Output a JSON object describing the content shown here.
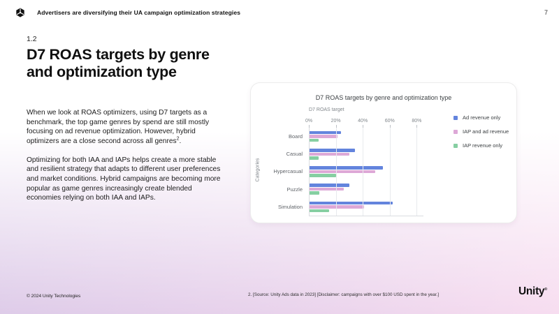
{
  "header": {
    "title": "Advertisers are diversifying their UA campaign optimization strategies",
    "page_number": "7"
  },
  "section": {
    "number": "1.2"
  },
  "main": {
    "title": "D7 ROAS targets by genre and optimization type",
    "paragraph1": "When we look at ROAS optimizers, using D7 targets as a benchmark, the top game genres by spend are still mostly focusing on ad revenue optimization. However, hybrid optimizers are a close second across all genres",
    "paragraph1_footnote_ref": "2",
    "paragraph1_end": ".",
    "paragraph2": "Optimizing for both IAA and IAPs helps create a more stable and resilient strategy that adapts to different user preferences and market conditions. Hybrid campaigns are becoming more popular as game genres increasingly create blended economies relying on both IAA and IAPs."
  },
  "chart_data": {
    "type": "bar",
    "orientation": "horizontal",
    "title": "D7 ROAS targets by genre and optimization type",
    "axis_title": "D7 ROAS target",
    "ylabel": "Categories",
    "categories": [
      "Board",
      "Casual",
      "Hypercasual",
      "Puzzle",
      "Simulation"
    ],
    "series": [
      {
        "name": "Ad revenue only",
        "color": "#6384dd",
        "values": [
          24,
          34,
          55,
          30,
          62
        ]
      },
      {
        "name": "IAP and ad revenue",
        "color": "#dda8d7",
        "values": [
          21,
          30,
          49,
          26,
          41
        ]
      },
      {
        "name": "IAP revenue only",
        "color": "#86cfa2",
        "values": [
          7,
          7,
          20,
          8,
          15
        ]
      }
    ],
    "x_ticks": [
      "0%",
      "20%",
      "40%",
      "60%",
      "80%"
    ],
    "x_tick_values": [
      0,
      20,
      40,
      60,
      80
    ],
    "xlim": [
      0,
      85
    ],
    "grid": true,
    "legend_position": "right"
  },
  "footer": {
    "copyright": "© 2024 Unity Technologies",
    "note": "2. [Source: Unity Ads data in 2023] [Disclaimer: campaigns with over $100 USD spent in the year.]",
    "brand": "Unity",
    "brand_mark": "®"
  }
}
